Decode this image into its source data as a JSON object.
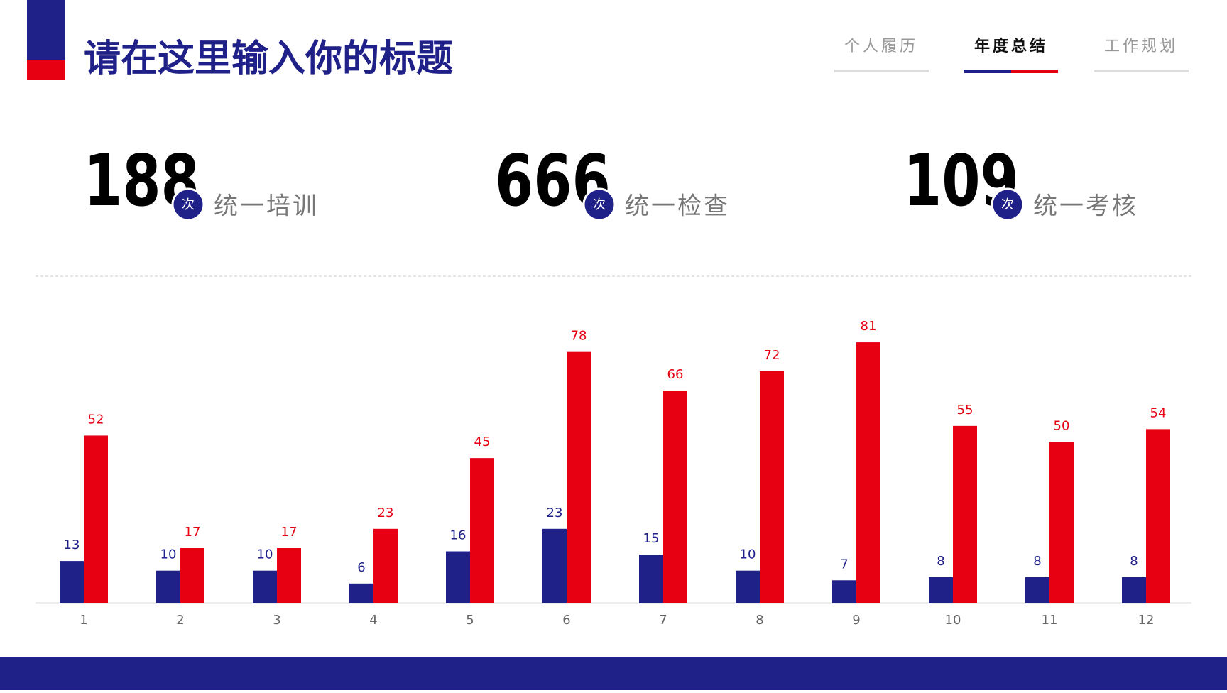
{
  "header": {
    "title": "请在这里输入你的标题"
  },
  "nav": [
    {
      "label": "个人履历",
      "active": false
    },
    {
      "label": "年度总结",
      "active": true
    },
    {
      "label": "工作规划",
      "active": false
    }
  ],
  "stats": [
    {
      "value": 188,
      "unit": "次",
      "label": "统一培训"
    },
    {
      "value": 666,
      "unit": "次",
      "label": "统一检查"
    },
    {
      "value": 109,
      "unit": "次",
      "label": "统一考核"
    }
  ],
  "chart_data": {
    "type": "bar",
    "categories": [
      "1",
      "2",
      "3",
      "4",
      "5",
      "6",
      "7",
      "8",
      "9",
      "10",
      "11",
      "12"
    ],
    "series": [
      {
        "color": "#1f2088",
        "values": [
          13,
          10,
          10,
          6,
          16,
          23,
          15,
          10,
          7,
          8,
          8,
          8
        ]
      },
      {
        "color": "#e60012",
        "values": [
          52,
          17,
          17,
          23,
          45,
          78,
          66,
          72,
          81,
          55,
          50,
          54
        ]
      }
    ],
    "ylim": [
      0,
      100
    ]
  }
}
